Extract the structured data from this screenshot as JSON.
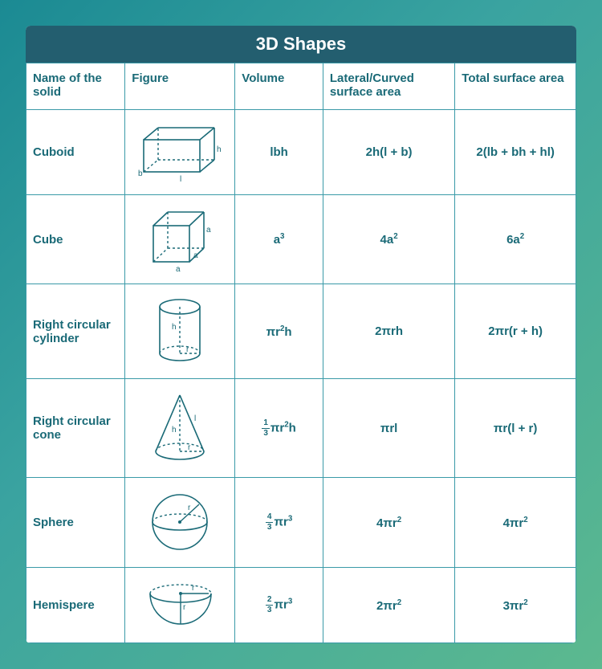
{
  "title": "3D Shapes",
  "columns": [
    "Name of the solid",
    "Figure",
    "Volume",
    "Lateral/Curved surface area",
    "Total surface area"
  ],
  "column_widths": [
    "18%",
    "20%",
    "16%",
    "24%",
    "22%"
  ],
  "style": {
    "bg_gradient_start": "#1b8a93",
    "bg_gradient_mid": "#3aa3a0",
    "bg_gradient_end": "#5cb98f",
    "title_bg": "#235e6f",
    "title_color": "#ffffff",
    "border_color": "#3a9aa8",
    "text_color": "#1a6a77",
    "stroke_color": "#1a6a77",
    "title_fontsize": 22,
    "header_fontsize": 15,
    "cell_fontsize": 15,
    "svg_label_fontsize": 10
  },
  "rows": [
    {
      "name": "Cuboid",
      "figure": "cuboid",
      "volume": "lbh",
      "lateral": "2h(l + b)",
      "total": "2(lb + bh + hl)"
    },
    {
      "name": "Cube",
      "figure": "cube",
      "volume": "a^3",
      "lateral": "4a^2",
      "total": "6a^2"
    },
    {
      "name": "Right circular cylinder",
      "figure": "cylinder",
      "volume": "πr^2h",
      "lateral": "2πrh",
      "total": "2πr(r + h)"
    },
    {
      "name": "Right circular cone",
      "figure": "cone",
      "volume": "(1/3)πr^2h",
      "lateral": "πrl",
      "total": "πr(l + r)"
    },
    {
      "name": "Sphere",
      "figure": "sphere",
      "volume": "(4/3)πr^3",
      "lateral": "4πr^2",
      "total": "4πr^2"
    },
    {
      "name": "Hemispere",
      "figure": "hemisphere",
      "volume": "(2/3)πr^3",
      "lateral": "2πr^2",
      "total": "3πr^2"
    }
  ]
}
